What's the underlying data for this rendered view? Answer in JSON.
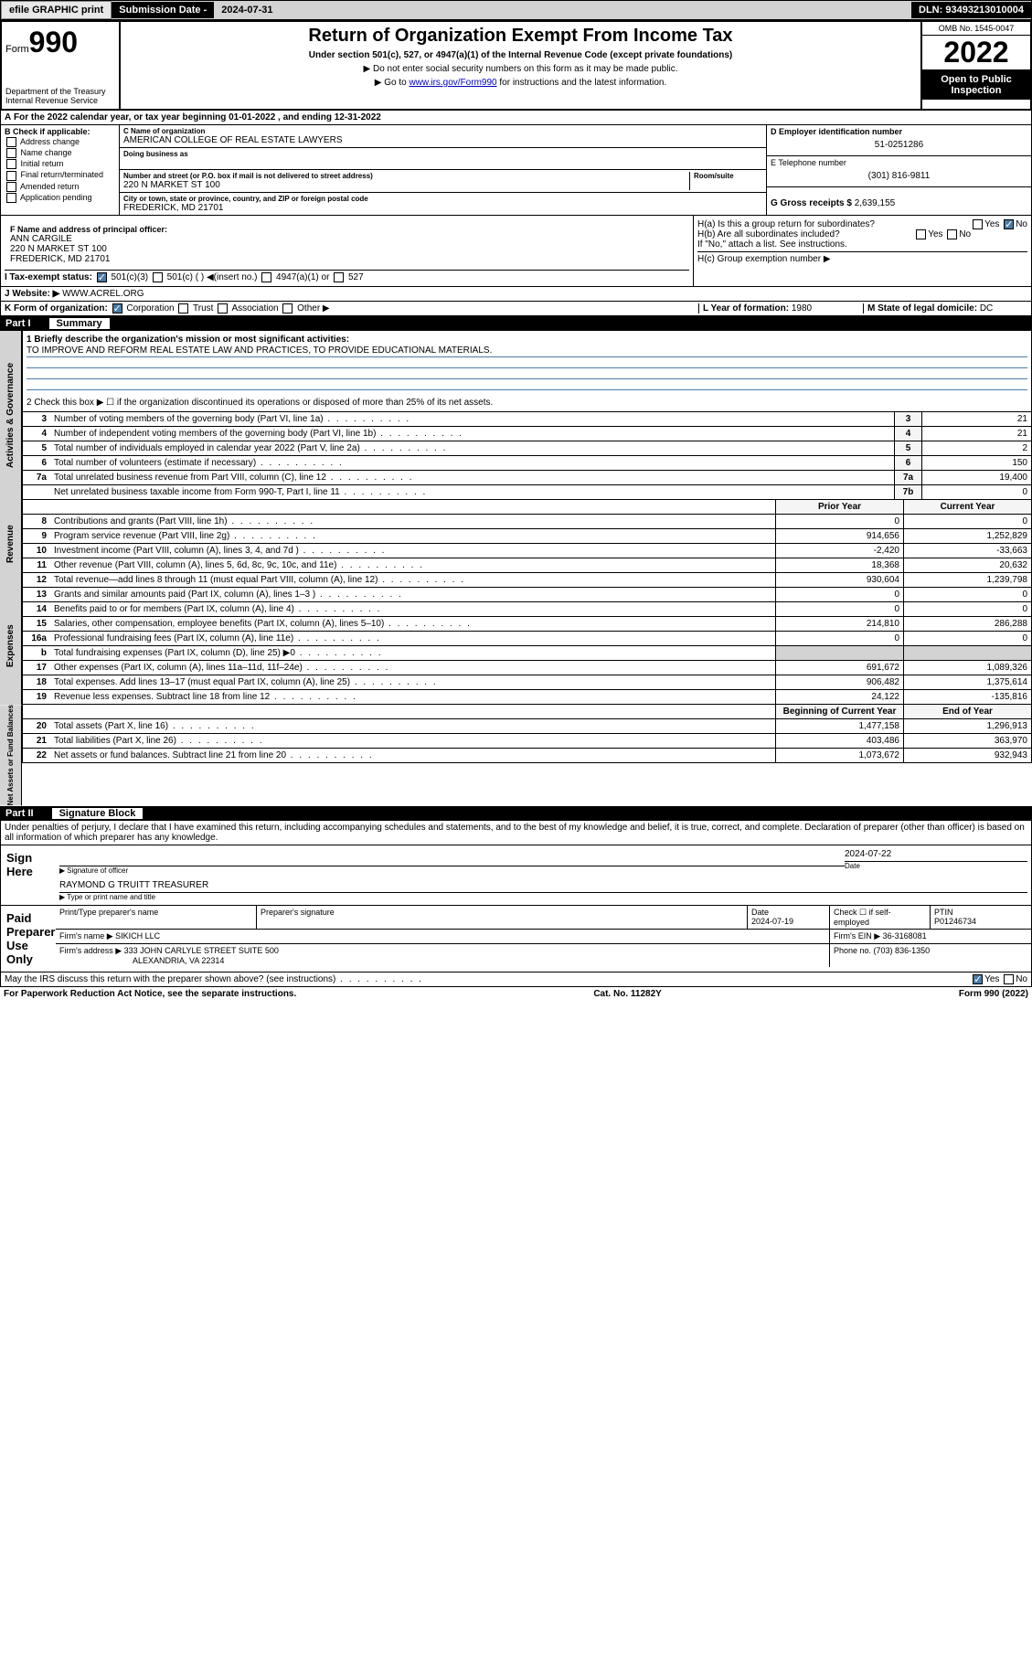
{
  "topbar": {
    "efile": "efile GRAPHIC print",
    "subdate_label": "Submission Date - ",
    "subdate": "2024-07-31",
    "dln_label": "DLN: ",
    "dln": "93493213010004"
  },
  "header": {
    "form": "Form",
    "form_num": "990",
    "dept": "Department of the Treasury\nInternal Revenue Service",
    "title": "Return of Organization Exempt From Income Tax",
    "subtitle": "Under section 501(c), 527, or 4947(a)(1) of the Internal Revenue Code (except private foundations)",
    "note1": "▶ Do not enter social security numbers on this form as it may be made public.",
    "note2_pre": "▶ Go to ",
    "note2_link": "www.irs.gov/Form990",
    "note2_post": " for instructions and the latest information.",
    "omb": "OMB No. 1545-0047",
    "year": "2022",
    "open_pub": "Open to Public Inspection"
  },
  "row_a": "For the 2022 calendar year, or tax year beginning 01-01-2022   , and ending 12-31-2022",
  "col_b": {
    "hdr": "B Check if applicable:",
    "items": [
      "Address change",
      "Name change",
      "Initial return",
      "Final return/terminated",
      "Amended return",
      "Application pending"
    ]
  },
  "org": {
    "name_label": "C Name of organization",
    "name": "AMERICAN COLLEGE OF REAL ESTATE LAWYERS",
    "dba_label": "Doing business as",
    "addr_label": "Number and street (or P.O. box if mail is not delivered to street address)",
    "room_label": "Room/suite",
    "addr": "220 N MARKET ST 100",
    "city_label": "City or town, state or province, country, and ZIP or foreign postal code",
    "city": "FREDERICK, MD  21701"
  },
  "right_d": {
    "ein_label": "D Employer identification number",
    "ein": "51-0251286",
    "tel_label": "E Telephone number",
    "tel": "(301) 816-9811",
    "gross_label": "G Gross receipts $ ",
    "gross": "2,639,155"
  },
  "officer": {
    "label": "F  Name and address of principal officer:",
    "name": "ANN CARGILE",
    "addr1": "220 N MARKET ST 100",
    "addr2": "FREDERICK, MD  21701"
  },
  "h_section": {
    "ha": "H(a)  Is this a group return for subordinates?",
    "hb": "H(b)  Are all subordinates included?",
    "hb_note": "If \"No,\" attach a list. See instructions.",
    "hc": "H(c)  Group exemption number ▶"
  },
  "row_i": {
    "label": "I    Tax-exempt status:",
    "opts": [
      "501(c)(3)",
      "501(c) (  ) ◀(insert no.)",
      "4947(a)(1) or",
      "527"
    ]
  },
  "row_j": {
    "label": "J    Website: ▶ ",
    "val": "WWW.ACREL.ORG"
  },
  "row_k": {
    "label": "K Form of organization:",
    "opts": [
      "Corporation",
      "Trust",
      "Association",
      "Other ▶"
    ]
  },
  "row_l": {
    "label": "L Year of formation: ",
    "val": "1980"
  },
  "row_m": {
    "label": "M State of legal domicile: ",
    "val": "DC"
  },
  "part1": {
    "hdr": "Part I",
    "name": "Summary",
    "q1_label": "1  Briefly describe the organization's mission or most significant activities:",
    "q1_val": "TO IMPROVE AND REFORM REAL ESTATE LAW AND PRACTICES, TO PROVIDE EDUCATIONAL MATERIALS.",
    "q2": "2   Check this box ▶ ☐  if the organization discontinued its operations or disposed of more than 25% of its net assets.",
    "rows_gov": [
      {
        "n": "3",
        "t": "Number of voting members of the governing body (Part VI, line 1a)",
        "b": "3",
        "v": "21"
      },
      {
        "n": "4",
        "t": "Number of independent voting members of the governing body (Part VI, line 1b)",
        "b": "4",
        "v": "21"
      },
      {
        "n": "5",
        "t": "Total number of individuals employed in calendar year 2022 (Part V, line 2a)",
        "b": "5",
        "v": "2"
      },
      {
        "n": "6",
        "t": "Total number of volunteers (estimate if necessary)",
        "b": "6",
        "v": "150"
      },
      {
        "n": "7a",
        "t": "Total unrelated business revenue from Part VIII, column (C), line 12",
        "b": "7a",
        "v": "19,400"
      },
      {
        "n": "",
        "t": "Net unrelated business taxable income from Form 990-T, Part I, line 11",
        "b": "7b",
        "v": "0"
      }
    ],
    "col_prior": "Prior Year",
    "col_curr": "Current Year",
    "rows_rev": [
      {
        "n": "8",
        "t": "Contributions and grants (Part VIII, line 1h)",
        "p": "0",
        "c": "0"
      },
      {
        "n": "9",
        "t": "Program service revenue (Part VIII, line 2g)",
        "p": "914,656",
        "c": "1,252,829"
      },
      {
        "n": "10",
        "t": "Investment income (Part VIII, column (A), lines 3, 4, and 7d )",
        "p": "-2,420",
        "c": "-33,663"
      },
      {
        "n": "11",
        "t": "Other revenue (Part VIII, column (A), lines 5, 6d, 8c, 9c, 10c, and 11e)",
        "p": "18,368",
        "c": "20,632"
      },
      {
        "n": "12",
        "t": "Total revenue—add lines 8 through 11 (must equal Part VIII, column (A), line 12)",
        "p": "930,604",
        "c": "1,239,798"
      }
    ],
    "rows_exp": [
      {
        "n": "13",
        "t": "Grants and similar amounts paid (Part IX, column (A), lines 1–3 )",
        "p": "0",
        "c": "0"
      },
      {
        "n": "14",
        "t": "Benefits paid to or for members (Part IX, column (A), line 4)",
        "p": "0",
        "c": "0"
      },
      {
        "n": "15",
        "t": "Salaries, other compensation, employee benefits (Part IX, column (A), lines 5–10)",
        "p": "214,810",
        "c": "286,288"
      },
      {
        "n": "16a",
        "t": "Professional fundraising fees (Part IX, column (A), line 11e)",
        "p": "0",
        "c": "0"
      },
      {
        "n": "b",
        "t": "Total fundraising expenses (Part IX, column (D), line 25) ▶0",
        "p": "",
        "c": ""
      },
      {
        "n": "17",
        "t": "Other expenses (Part IX, column (A), lines 11a–11d, 11f–24e)",
        "p": "691,672",
        "c": "1,089,326"
      },
      {
        "n": "18",
        "t": "Total expenses. Add lines 13–17 (must equal Part IX, column (A), line 25)",
        "p": "906,482",
        "c": "1,375,614"
      },
      {
        "n": "19",
        "t": "Revenue less expenses. Subtract line 18 from line 12",
        "p": "24,122",
        "c": "-135,816"
      }
    ],
    "col_begin": "Beginning of Current Year",
    "col_end": "End of Year",
    "rows_net": [
      {
        "n": "20",
        "t": "Total assets (Part X, line 16)",
        "p": "1,477,158",
        "c": "1,296,913"
      },
      {
        "n": "21",
        "t": "Total liabilities (Part X, line 26)",
        "p": "403,486",
        "c": "363,970"
      },
      {
        "n": "22",
        "t": "Net assets or fund balances. Subtract line 21 from line 20",
        "p": "1,073,672",
        "c": "932,943"
      }
    ],
    "vlabels": [
      "Activities & Governance",
      "Revenue",
      "Expenses",
      "Net Assets or Fund Balances"
    ]
  },
  "part2": {
    "hdr": "Part II",
    "name": "Signature Block",
    "decl": "Under penalties of perjury, I declare that I have examined this return, including accompanying schedules and statements, and to the best of my knowledge and belief, it is true, correct, and complete. Declaration of preparer (other than officer) is based on all information of which preparer has any knowledge.",
    "sign_here": "Sign Here",
    "sig_officer": "Signature of officer",
    "sig_date": "2024-07-22",
    "date_label": "Date",
    "officer_name": "RAYMOND G TRUITT TREASURER",
    "name_title": "Type or print name and title",
    "paid_prep": "Paid Preparer Use Only",
    "prep_name_label": "Print/Type preparer's name",
    "prep_sig_label": "Preparer's signature",
    "prep_date": "2024-07-19",
    "check_self": "Check ☐ if self-employed",
    "ptin_label": "PTIN",
    "ptin": "P01246734",
    "firm_name_label": "Firm's name    ▶ ",
    "firm_name": "SIKICH LLC",
    "firm_ein_label": "Firm's EIN ▶ ",
    "firm_ein": "36-3168081",
    "firm_addr_label": "Firm's address ▶ ",
    "firm_addr1": "333 JOHN CARLYLE STREET SUITE 500",
    "firm_addr2": "ALEXANDRIA, VA  22314",
    "phone_label": "Phone no. ",
    "phone": "(703) 836-1350",
    "irs_discuss": "May the IRS discuss this return with the preparer shown above? (see instructions)"
  },
  "footer": {
    "left": "For Paperwork Reduction Act Notice, see the separate instructions.",
    "mid": "Cat. No. 11282Y",
    "right": "Form 990 (2022)"
  }
}
